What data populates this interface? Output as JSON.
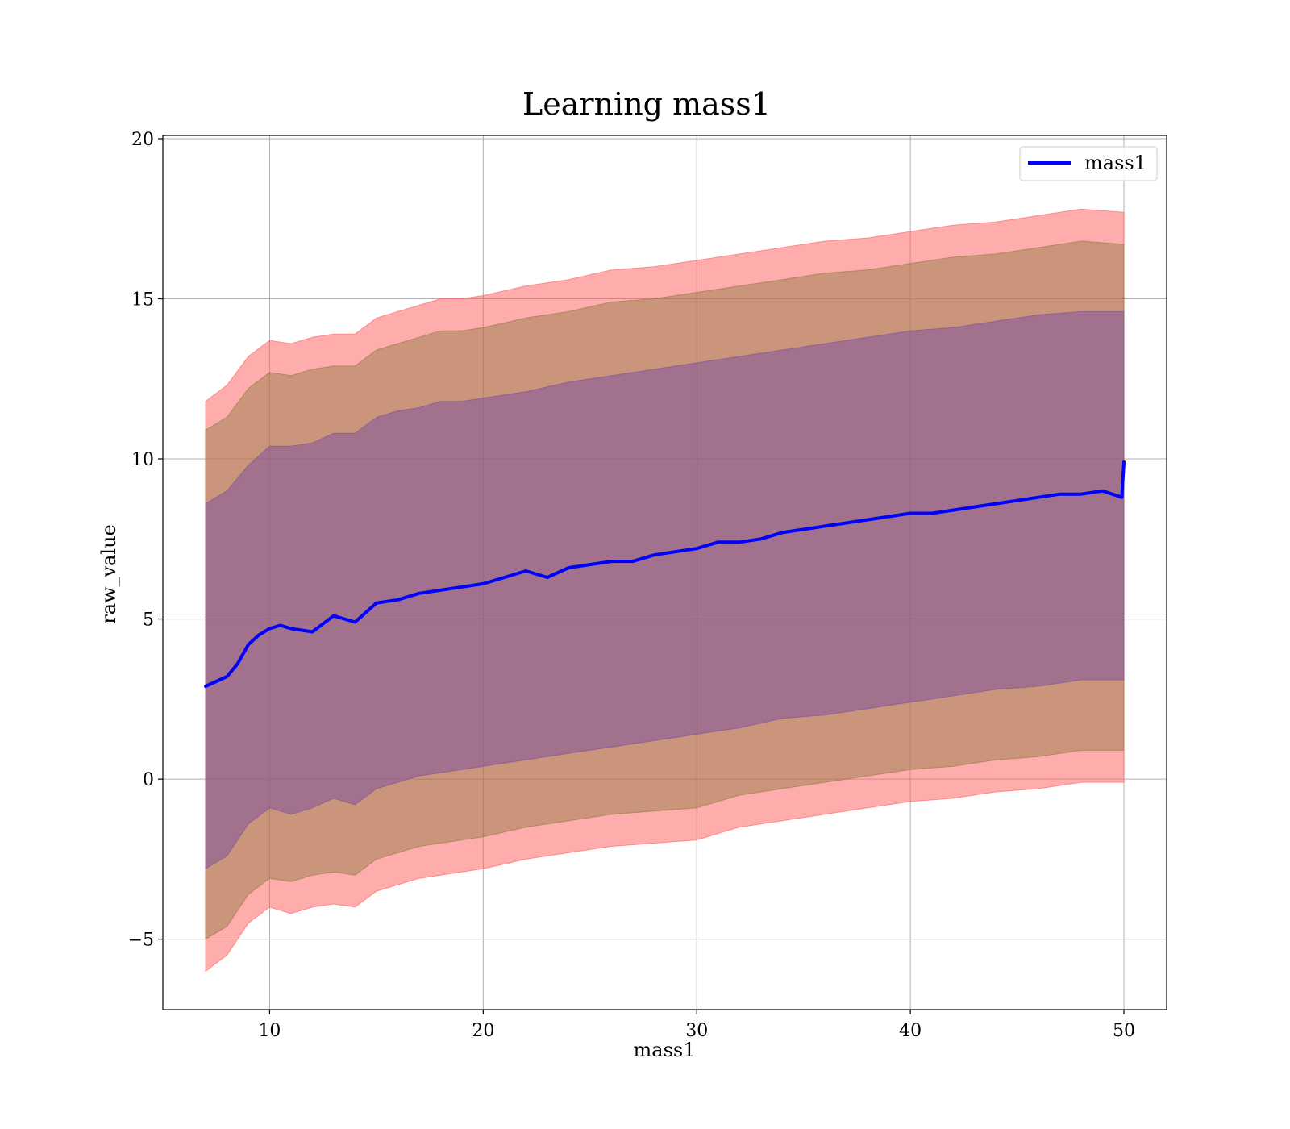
{
  "chart_data": {
    "type": "line",
    "title": "Learning mass1",
    "xlabel": "mass1",
    "ylabel": "raw_value",
    "xlim": [
      5,
      52
    ],
    "ylim": [
      -7.2,
      20.1
    ],
    "xticks": [
      10,
      20,
      30,
      40,
      50
    ],
    "yticks": [
      -5,
      0,
      5,
      10,
      15,
      20
    ],
    "xtick_labels": [
      "10",
      "20",
      "30",
      "40",
      "50"
    ],
    "ytick_labels": [
      "−5",
      "0",
      "5",
      "10",
      "15",
      "20"
    ],
    "grid": true,
    "legend": {
      "position": "top-right",
      "entries": [
        "mass1"
      ]
    },
    "colors": {
      "line": "#0000ff",
      "band_outer": "#ff5a5a",
      "band_middle": "#8b7a40",
      "band_inner": "#7a4ea0",
      "grid": "#b0b0b0"
    },
    "series": [
      {
        "name": "mass1",
        "x": [
          7,
          8,
          8.5,
          9,
          9.5,
          10,
          10.5,
          11,
          12,
          13,
          14,
          15,
          16,
          17,
          18,
          19,
          20,
          21,
          22,
          23,
          24,
          25,
          26,
          27,
          28,
          29,
          30,
          31,
          32,
          33,
          34,
          35,
          36,
          37,
          38,
          39,
          40,
          41,
          42,
          43,
          44,
          45,
          46,
          47,
          48,
          49,
          49.9,
          50
        ],
        "values": [
          2.9,
          3.2,
          3.6,
          4.2,
          4.5,
          4.7,
          4.8,
          4.7,
          4.6,
          5.1,
          4.9,
          5.5,
          5.6,
          5.8,
          5.9,
          6.0,
          6.1,
          6.3,
          6.5,
          6.3,
          6.6,
          6.7,
          6.8,
          6.8,
          7.0,
          7.1,
          7.2,
          7.4,
          7.4,
          7.5,
          7.7,
          7.8,
          7.9,
          8.0,
          8.1,
          8.2,
          8.3,
          8.3,
          8.4,
          8.5,
          8.6,
          8.7,
          8.8,
          8.9,
          8.9,
          9.0,
          8.8,
          9.9
        ]
      }
    ],
    "bands": [
      {
        "level": "outer",
        "x": [
          7,
          8,
          9,
          10,
          11,
          12,
          13,
          14,
          15,
          16,
          17,
          18,
          19,
          20,
          22,
          24,
          26,
          28,
          30,
          32,
          34,
          36,
          38,
          40,
          42,
          44,
          46,
          48,
          50
        ],
        "upper": [
          11.8,
          12.3,
          13.2,
          13.7,
          13.6,
          13.8,
          13.9,
          13.9,
          14.4,
          14.6,
          14.8,
          15.0,
          15.0,
          15.1,
          15.4,
          15.6,
          15.9,
          16.0,
          16.2,
          16.4,
          16.6,
          16.8,
          16.9,
          17.1,
          17.3,
          17.4,
          17.6,
          17.8,
          17.7
        ],
        "lower": [
          -6.0,
          -5.5,
          -4.5,
          -4.0,
          -4.2,
          -4.0,
          -3.9,
          -4.0,
          -3.5,
          -3.3,
          -3.1,
          -3.0,
          -2.9,
          -2.8,
          -2.5,
          -2.3,
          -2.1,
          -2.0,
          -1.9,
          -1.5,
          -1.3,
          -1.1,
          -0.9,
          -0.7,
          -0.6,
          -0.4,
          -0.3,
          -0.1,
          -0.1
        ]
      },
      {
        "level": "middle",
        "x": [
          7,
          8,
          9,
          10,
          11,
          12,
          13,
          14,
          15,
          16,
          17,
          18,
          19,
          20,
          22,
          24,
          26,
          28,
          30,
          32,
          34,
          36,
          38,
          40,
          42,
          44,
          46,
          48,
          50
        ],
        "upper": [
          10.9,
          11.3,
          12.2,
          12.7,
          12.6,
          12.8,
          12.9,
          12.9,
          13.4,
          13.6,
          13.8,
          14.0,
          14.0,
          14.1,
          14.4,
          14.6,
          14.9,
          15.0,
          15.2,
          15.4,
          15.6,
          15.8,
          15.9,
          16.1,
          16.3,
          16.4,
          16.6,
          16.8,
          16.7
        ],
        "lower": [
          -5.0,
          -4.6,
          -3.6,
          -3.1,
          -3.2,
          -3.0,
          -2.9,
          -3.0,
          -2.5,
          -2.3,
          -2.1,
          -2.0,
          -1.9,
          -1.8,
          -1.5,
          -1.3,
          -1.1,
          -1.0,
          -0.9,
          -0.5,
          -0.3,
          -0.1,
          0.1,
          0.3,
          0.4,
          0.6,
          0.7,
          0.9,
          0.9
        ]
      },
      {
        "level": "inner",
        "x": [
          7,
          8,
          9,
          10,
          11,
          12,
          13,
          14,
          15,
          16,
          17,
          18,
          19,
          20,
          22,
          24,
          26,
          28,
          30,
          32,
          34,
          36,
          38,
          40,
          42,
          44,
          46,
          48,
          50
        ],
        "upper": [
          8.6,
          9.0,
          9.8,
          10.4,
          10.4,
          10.5,
          10.8,
          10.8,
          11.3,
          11.5,
          11.6,
          11.8,
          11.8,
          11.9,
          12.1,
          12.4,
          12.6,
          12.8,
          13.0,
          13.2,
          13.4,
          13.6,
          13.8,
          14.0,
          14.1,
          14.3,
          14.5,
          14.6,
          14.6
        ],
        "lower": [
          -2.8,
          -2.4,
          -1.4,
          -0.9,
          -1.1,
          -0.9,
          -0.6,
          -0.8,
          -0.3,
          -0.1,
          0.1,
          0.2,
          0.3,
          0.4,
          0.6,
          0.8,
          1.0,
          1.2,
          1.4,
          1.6,
          1.9,
          2.0,
          2.2,
          2.4,
          2.6,
          2.8,
          2.9,
          3.1,
          3.1
        ]
      }
    ]
  }
}
